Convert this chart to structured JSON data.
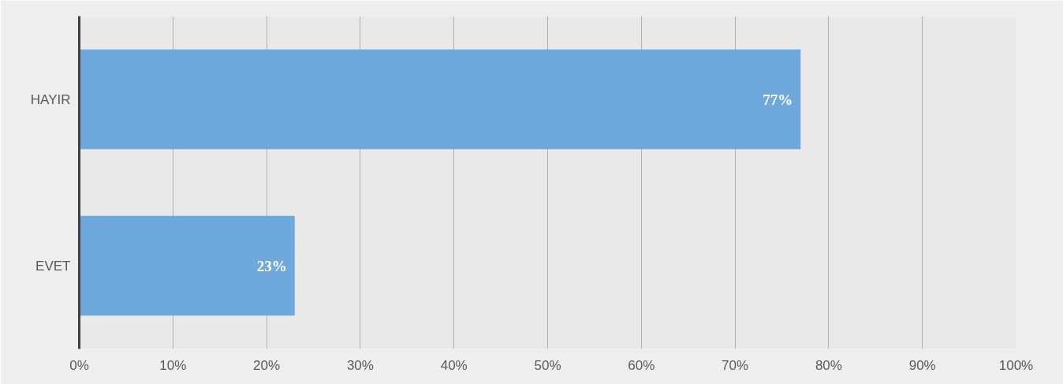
{
  "chart_data": {
    "type": "bar",
    "orientation": "horizontal",
    "categories": [
      "HAYIR",
      "EVET"
    ],
    "values": [
      77,
      23
    ],
    "color": "#6fa8dc",
    "value_labels": [
      "77%",
      "23%"
    ],
    "xlim": [
      0,
      100
    ],
    "xticks": [
      {
        "value": 0,
        "label": "0%"
      },
      {
        "value": 10,
        "label": "10%"
      },
      {
        "value": 20,
        "label": "20%"
      },
      {
        "value": 30,
        "label": "30%"
      },
      {
        "value": 40,
        "label": "40%"
      },
      {
        "value": 50,
        "label": "50%"
      },
      {
        "value": 60,
        "label": "60%"
      },
      {
        "value": 70,
        "label": "70%"
      },
      {
        "value": 80,
        "label": "80%"
      },
      {
        "value": 90,
        "label": "90%"
      },
      {
        "value": 100,
        "label": "100%"
      }
    ],
    "grid": "x"
  }
}
